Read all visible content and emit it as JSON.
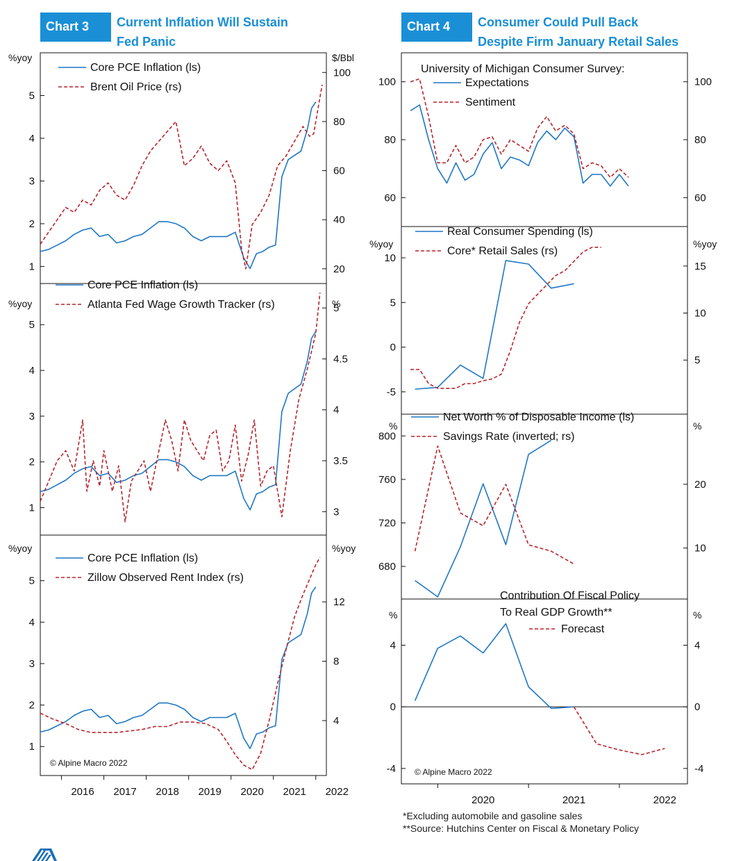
{
  "chart3": {
    "tag": "Chart 3",
    "title_line1": "Current Inflation Will Sustain",
    "title_line2": "Fed Panic"
  },
  "chart4": {
    "tag": "Chart 4",
    "title_line1": "Consumer Could Pull Back",
    "title_line2": "Despite Firm January Retail Sales"
  },
  "footnotes": {
    "line1": "*Excluding automobile and gasoline sales",
    "line2": "**Source: Hutchins Center on Fiscal & Monetary Policy"
  },
  "colors": {
    "blue": "#1f77c4",
    "red": "#b8242c",
    "accent": "#1a8fd6"
  },
  "chart_data": [
    {
      "type": "line",
      "left_unit": "%yoy",
      "right_unit": "$/Bbl",
      "ylim_left": [
        0.6,
        6
      ],
      "ylim_right": [
        14,
        108
      ],
      "yticks_left": [
        1,
        2,
        3,
        4,
        5
      ],
      "yticks_right": [
        20,
        40,
        60,
        80,
        100
      ],
      "series": [
        {
          "name": "Core PCE Inflation (ls)",
          "axis": "left",
          "color": "blue",
          "style": "solid",
          "x": [
            2015.5,
            2015.7,
            2015.9,
            2016.1,
            2016.3,
            2016.5,
            2016.7,
            2016.9,
            2017.1,
            2017.3,
            2017.5,
            2017.7,
            2017.9,
            2018.1,
            2018.3,
            2018.5,
            2018.7,
            2018.9,
            2019.1,
            2019.3,
            2019.5,
            2019.7,
            2019.9,
            2020.1,
            2020.3,
            2020.45,
            2020.6,
            2020.75,
            2020.9,
            2021.05,
            2021.2,
            2021.35,
            2021.5,
            2021.65,
            2021.8,
            2021.9,
            2022.0
          ],
          "y": [
            1.35,
            1.4,
            1.5,
            1.6,
            1.75,
            1.85,
            1.9,
            1.7,
            1.75,
            1.55,
            1.6,
            1.7,
            1.75,
            1.9,
            2.05,
            2.05,
            2.0,
            1.9,
            1.7,
            1.6,
            1.7,
            1.7,
            1.7,
            1.8,
            1.2,
            0.95,
            1.3,
            1.35,
            1.45,
            1.5,
            3.1,
            3.5,
            3.6,
            3.7,
            4.2,
            4.7,
            4.85
          ]
        },
        {
          "name": "Brent Oil Price (rs)",
          "axis": "right",
          "color": "red",
          "style": "dashed",
          "x": [
            2015.5,
            2015.7,
            2015.9,
            2016.1,
            2016.3,
            2016.5,
            2016.7,
            2016.9,
            2017.1,
            2017.3,
            2017.5,
            2017.7,
            2017.9,
            2018.1,
            2018.3,
            2018.5,
            2018.7,
            2018.9,
            2019.1,
            2019.3,
            2019.5,
            2019.7,
            2019.9,
            2020.1,
            2020.25,
            2020.35,
            2020.5,
            2020.7,
            2020.9,
            2021.1,
            2021.3,
            2021.5,
            2021.7,
            2021.85,
            2021.95,
            2022.05,
            2022.15
          ],
          "y": [
            30,
            35,
            40,
            45,
            43,
            48,
            46,
            52,
            55,
            50,
            48,
            54,
            62,
            68,
            72,
            76,
            80,
            62,
            65,
            70,
            63,
            60,
            64,
            55,
            28,
            20,
            38,
            43,
            50,
            62,
            66,
            72,
            78,
            74,
            75,
            85,
            95
          ]
        }
      ]
    },
    {
      "type": "line",
      "left_unit": "%yoy",
      "right_unit": "%",
      "ylim_left": [
        0.4,
        5.9
      ],
      "ylim_right": [
        2.77,
        5.24
      ],
      "yticks_left": [
        1,
        2,
        3,
        4,
        5
      ],
      "yticks_right": [
        3.0,
        3.5,
        4.0,
        4.5,
        5.0
      ],
      "series": [
        {
          "name": "Core PCE Inflation (ls)",
          "axis": "left",
          "color": "blue",
          "style": "solid",
          "x": [
            2015.5,
            2015.7,
            2015.9,
            2016.1,
            2016.3,
            2016.5,
            2016.7,
            2016.9,
            2017.1,
            2017.3,
            2017.5,
            2017.7,
            2017.9,
            2018.1,
            2018.3,
            2018.5,
            2018.7,
            2018.9,
            2019.1,
            2019.3,
            2019.5,
            2019.7,
            2019.9,
            2020.1,
            2020.3,
            2020.45,
            2020.6,
            2020.75,
            2020.9,
            2021.05,
            2021.2,
            2021.35,
            2021.5,
            2021.65,
            2021.8,
            2021.9,
            2022.0
          ],
          "y": [
            1.35,
            1.4,
            1.5,
            1.6,
            1.75,
            1.85,
            1.9,
            1.7,
            1.75,
            1.55,
            1.6,
            1.7,
            1.75,
            1.9,
            2.05,
            2.05,
            2.0,
            1.9,
            1.7,
            1.6,
            1.7,
            1.7,
            1.7,
            1.8,
            1.2,
            0.95,
            1.3,
            1.35,
            1.45,
            1.5,
            3.1,
            3.5,
            3.6,
            3.7,
            4.2,
            4.7,
            4.85
          ]
        },
        {
          "name": "Atlanta Fed Wage Growth Tracker (rs)",
          "axis": "right",
          "color": "red",
          "style": "dashed",
          "x": [
            2015.5,
            2015.7,
            2015.9,
            2016.1,
            2016.3,
            2016.5,
            2016.6,
            2016.75,
            2016.9,
            2017.0,
            2017.2,
            2017.35,
            2017.5,
            2017.65,
            2017.8,
            2017.95,
            2018.1,
            2018.3,
            2018.45,
            2018.6,
            2018.75,
            2018.9,
            2019.05,
            2019.2,
            2019.35,
            2019.5,
            2019.65,
            2019.8,
            2019.95,
            2020.1,
            2020.25,
            2020.4,
            2020.55,
            2020.7,
            2020.85,
            2021.0,
            2021.2,
            2021.4,
            2021.6,
            2021.8,
            2022.0,
            2022.1
          ],
          "y": [
            3.1,
            3.3,
            3.5,
            3.6,
            3.4,
            3.9,
            3.2,
            3.5,
            3.25,
            3.6,
            3.2,
            3.45,
            2.9,
            3.3,
            3.4,
            3.5,
            3.2,
            3.6,
            3.9,
            3.7,
            3.4,
            3.9,
            3.7,
            3.6,
            3.5,
            3.75,
            3.8,
            3.4,
            3.5,
            3.85,
            3.3,
            3.55,
            3.9,
            3.25,
            3.4,
            3.45,
            2.95,
            3.6,
            4.1,
            4.4,
            4.75,
            5.15
          ]
        }
      ]
    },
    {
      "type": "line",
      "left_unit": "%yoy",
      "right_unit": "%yoy",
      "ylim_left": [
        0.3,
        6.1
      ],
      "ylim_right": [
        0.3,
        16.5
      ],
      "yticks_left": [
        1,
        2,
        3,
        4,
        5
      ],
      "yticks_right": [
        4,
        8,
        12
      ],
      "series": [
        {
          "name": "Core PCE Inflation (ls)",
          "axis": "left",
          "color": "blue",
          "style": "solid",
          "x": [
            2015.5,
            2015.7,
            2015.9,
            2016.1,
            2016.3,
            2016.5,
            2016.7,
            2016.9,
            2017.1,
            2017.3,
            2017.5,
            2017.7,
            2017.9,
            2018.1,
            2018.3,
            2018.5,
            2018.7,
            2018.9,
            2019.1,
            2019.3,
            2019.5,
            2019.7,
            2019.9,
            2020.1,
            2020.3,
            2020.45,
            2020.6,
            2020.75,
            2020.9,
            2021.05,
            2021.2,
            2021.35,
            2021.5,
            2021.65,
            2021.8,
            2021.9,
            2022.0
          ],
          "y": [
            1.35,
            1.4,
            1.5,
            1.6,
            1.75,
            1.85,
            1.9,
            1.7,
            1.75,
            1.55,
            1.6,
            1.7,
            1.75,
            1.9,
            2.05,
            2.05,
            2.0,
            1.9,
            1.7,
            1.6,
            1.7,
            1.7,
            1.7,
            1.8,
            1.2,
            0.95,
            1.3,
            1.35,
            1.45,
            1.5,
            3.1,
            3.5,
            3.6,
            3.7,
            4.2,
            4.7,
            4.85
          ]
        },
        {
          "name": "Zillow Observed Rent Index (rs)",
          "axis": "right",
          "color": "red",
          "style": "dashed",
          "x": [
            2015.5,
            2015.8,
            2016.1,
            2016.4,
            2016.7,
            2017.0,
            2017.3,
            2017.6,
            2017.9,
            2018.2,
            2018.5,
            2018.8,
            2019.1,
            2019.4,
            2019.7,
            2019.9,
            2020.1,
            2020.3,
            2020.5,
            2020.7,
            2020.9,
            2021.1,
            2021.3,
            2021.5,
            2021.7,
            2021.85,
            2022.0,
            2022.1
          ],
          "y": [
            4.5,
            4.1,
            3.8,
            3.4,
            3.2,
            3.2,
            3.2,
            3.3,
            3.4,
            3.6,
            3.6,
            3.9,
            3.9,
            3.8,
            3.4,
            2.6,
            1.7,
            1.0,
            0.7,
            1.8,
            4.0,
            6.5,
            8.8,
            11.0,
            12.5,
            13.5,
            14.5,
            15.0
          ]
        }
      ]
    },
    {
      "type": "line",
      "title": "University of Michigan Consumer Survey:",
      "left_unit": "",
      "right_unit": "",
      "ylim_left": [
        50,
        110
      ],
      "ylim_right": [
        50,
        110
      ],
      "yticks_left": [
        60,
        80,
        100
      ],
      "yticks_right": [
        60,
        80,
        100
      ],
      "series": [
        {
          "name": "Expectations",
          "axis": "left",
          "color": "blue",
          "style": "solid",
          "x": [
            2019.7,
            2019.8,
            2019.9,
            2020.0,
            2020.1,
            2020.2,
            2020.3,
            2020.4,
            2020.5,
            2020.6,
            2020.7,
            2020.8,
            2020.9,
            2021.0,
            2021.1,
            2021.2,
            2021.3,
            2021.4,
            2021.5,
            2021.6,
            2021.7,
            2021.8,
            2021.9,
            2022.0,
            2022.1
          ],
          "y": [
            90,
            92,
            80,
            70,
            65,
            72,
            66,
            68,
            75,
            79,
            70,
            74,
            73,
            71,
            79,
            83,
            80,
            84,
            81,
            65,
            68,
            68,
            64,
            68,
            64
          ]
        },
        {
          "name": "Sentiment",
          "axis": "left",
          "color": "red",
          "style": "dashed",
          "x": [
            2019.7,
            2019.8,
            2019.9,
            2020.0,
            2020.1,
            2020.2,
            2020.3,
            2020.4,
            2020.5,
            2020.6,
            2020.7,
            2020.8,
            2020.9,
            2021.0,
            2021.1,
            2021.2,
            2021.3,
            2021.4,
            2021.5,
            2021.6,
            2021.7,
            2021.8,
            2021.9,
            2022.0,
            2022.1
          ],
          "y": [
            100,
            101,
            88,
            72,
            72,
            78,
            72,
            74,
            80,
            81,
            75,
            80,
            78,
            76,
            84,
            88,
            83,
            85,
            82,
            70,
            72,
            71,
            67,
            70,
            67
          ]
        }
      ]
    },
    {
      "type": "line",
      "left_unit": "%yoy",
      "right_unit": "%yoy",
      "ylim_left": [
        -7.5,
        13.5
      ],
      "ylim_right": [
        -0.75,
        19.2
      ],
      "yticks_left": [
        -5,
        0,
        5,
        10
      ],
      "yticks_right": [
        5,
        10,
        15
      ],
      "series": [
        {
          "name": "Real Consumer Spending (ls)",
          "axis": "left",
          "color": "blue",
          "style": "solid",
          "x": [
            2019.75,
            2020.0,
            2020.25,
            2020.5,
            2020.75,
            2021.0,
            2021.25,
            2021.5
          ],
          "y": [
            -4.7,
            -4.5,
            -2.0,
            -3.5,
            9.7,
            9.3,
            6.6,
            7.1
          ]
        },
        {
          "name": "Core* Retail Sales (rs)",
          "axis": "right",
          "color": "red",
          "style": "dashed",
          "x": [
            2019.7,
            2019.8,
            2019.9,
            2020.0,
            2020.1,
            2020.2,
            2020.3,
            2020.4,
            2020.5,
            2020.6,
            2020.7,
            2020.8,
            2020.9,
            2021.0,
            2021.1,
            2021.2,
            2021.3,
            2021.4,
            2021.5,
            2021.6,
            2021.7,
            2021.8
          ],
          "y": [
            4.0,
            4.0,
            2.5,
            2.0,
            2.0,
            2.0,
            2.5,
            2.5,
            2.8,
            3.0,
            3.5,
            6.0,
            9.0,
            11.0,
            12.0,
            13.0,
            14.0,
            14.5,
            15.5,
            16.5,
            17.0,
            17.0
          ]
        }
      ]
    },
    {
      "type": "line",
      "left_unit": "%",
      "right_unit": "%",
      "ylim_left": [
        650,
        820
      ],
      "ylim_right": [
        2,
        31
      ],
      "yticks_left": [
        680,
        720,
        760,
        800
      ],
      "yticks_right": [
        10,
        20
      ],
      "series": [
        {
          "name": "Net Worth % of Disposable Income (ls)",
          "axis": "left",
          "color": "blue",
          "style": "solid",
          "x": [
            2019.75,
            2020.0,
            2020.25,
            2020.5,
            2020.75,
            2021.0,
            2021.25
          ],
          "y": [
            667,
            652,
            698,
            756,
            700,
            783,
            796
          ]
        },
        {
          "name": "Savings Rate (inverted; rs)",
          "axis": "right",
          "color": "red",
          "style": "dashed",
          "x": [
            2019.75,
            2020.0,
            2020.25,
            2020.5,
            2020.75,
            2021.0,
            2021.25,
            2021.5
          ],
          "y": [
            9.5,
            26.0,
            15.5,
            13.5,
            20.0,
            10.5,
            9.5,
            7.5
          ]
        }
      ]
    },
    {
      "type": "line",
      "title": "Contribution Of Fiscal Policy To Real GDP Growth**",
      "left_unit": "%",
      "right_unit": "%",
      "ylim_left": [
        -5,
        7
      ],
      "ylim_right": [
        -5,
        7
      ],
      "yticks_left": [
        -4,
        0,
        4
      ],
      "yticks_right": [
        -4,
        0,
        4
      ],
      "series": [
        {
          "name": "",
          "axis": "left",
          "color": "blue",
          "style": "solid",
          "x": [
            2019.75,
            2020.0,
            2020.25,
            2020.5,
            2020.75,
            2021.0,
            2021.25,
            2021.5
          ],
          "y": [
            0.4,
            3.8,
            4.6,
            3.5,
            5.4,
            1.3,
            -0.1,
            0.0
          ]
        },
        {
          "name": "Forecast",
          "axis": "left",
          "color": "red",
          "style": "dashed",
          "x": [
            2021.5,
            2021.75,
            2022.0,
            2022.25,
            2022.5
          ],
          "y": [
            0.0,
            -2.4,
            -2.8,
            -3.1,
            -2.7
          ]
        }
      ]
    }
  ],
  "x_axis_left": {
    "labels": [
      "2016",
      "2017",
      "2018",
      "2019",
      "2020",
      "2021",
      "2022"
    ],
    "xlim": [
      2015.5,
      2022.25
    ]
  },
  "x_axis_right": {
    "labels": [
      "2020",
      "2021",
      "2022"
    ],
    "xlim": [
      2019.6,
      2022.75
    ]
  },
  "copyright_left": "© Alpine Macro 2022",
  "copyright_right": "© Alpine Macro 2022"
}
